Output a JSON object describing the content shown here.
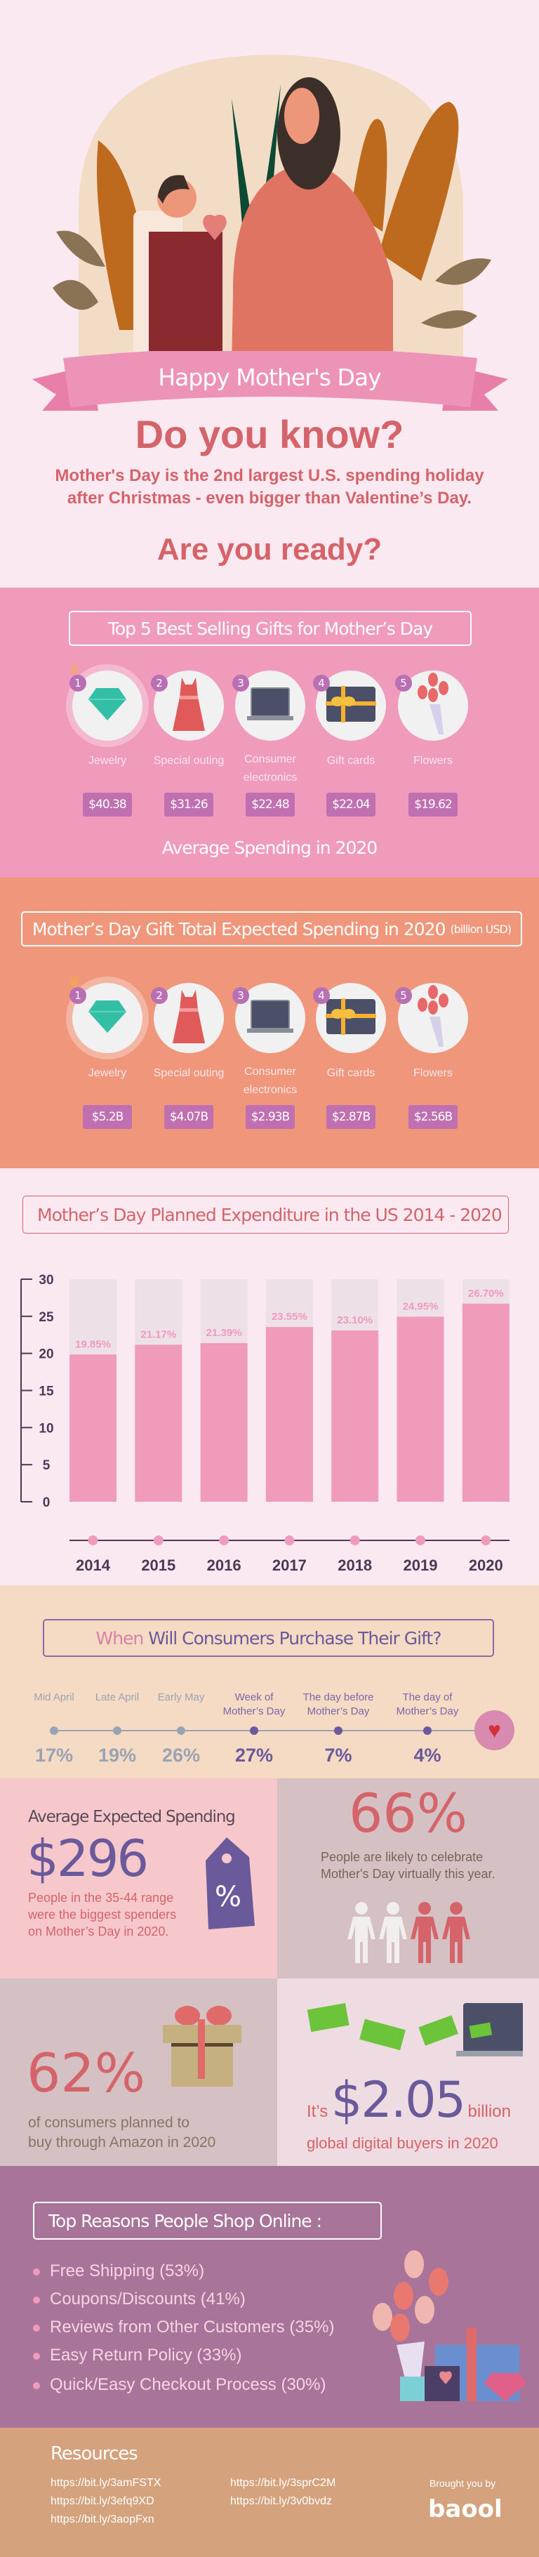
{
  "hero": {
    "ribbon": "Happy Mother's Day",
    "headline": "Do you know?",
    "fact_line1": "Mother's Day is the 2nd largest U.S. spending holiday",
    "fact_line2": "after Christmas - even bigger than Valentine’s Day.",
    "cta": "Are you ready?"
  },
  "top_gifts": {
    "title": "Top 5 Best Selling Gifts for Mother’s Day",
    "items": [
      {
        "rank": "1",
        "label": "Jewelry",
        "value": "$40.38",
        "icon": "diamond-icon"
      },
      {
        "rank": "2",
        "label": "Special outing",
        "value": "$31.26",
        "icon": "dress-icon"
      },
      {
        "rank": "3",
        "label": "Consumer electronics",
        "value": "$22.48",
        "icon": "laptop-icon"
      },
      {
        "rank": "4",
        "label": "Gift cards",
        "value": "$22.04",
        "icon": "gift-card-icon"
      },
      {
        "rank": "5",
        "label": "Flowers",
        "value": "$19.62",
        "icon": "flowers-icon"
      }
    ],
    "footer": "Average Spending in 2020"
  },
  "total_spending": {
    "title": "Mother’s Day Gift Total Expected Spending in 2020",
    "unit": "(billion USD)",
    "items": [
      {
        "rank": "1",
        "label": "Jewelry",
        "value": "$5.2B"
      },
      {
        "rank": "2",
        "label": "Special outing",
        "value": "$4.07B"
      },
      {
        "rank": "3",
        "label": "Consumer electronics",
        "value": "$2.93B"
      },
      {
        "rank": "4",
        "label": "Gift cards",
        "value": "$2.87B"
      },
      {
        "rank": "5",
        "label": "Flowers",
        "value": "$2.56B"
      }
    ]
  },
  "chart_data": {
    "type": "bar",
    "title": "Mother’s Day Planned Expenditure in the US 2014 - 2020",
    "categories": [
      "2014",
      "2015",
      "2016",
      "2017",
      "2018",
      "2019",
      "2020"
    ],
    "values": [
      19.85,
      21.17,
      21.39,
      23.55,
      23.1,
      24.95,
      26.7
    ],
    "data_labels": [
      "19.85%",
      "21.17%",
      "21.39%",
      "23.55%",
      "23.10%",
      "24.95%",
      "26.70%"
    ],
    "yticks": [
      "0",
      "5",
      "10",
      "15",
      "20",
      "25",
      "30"
    ],
    "ylim": [
      0,
      30
    ],
    "grid": false,
    "colors": {
      "bar": "#f09abc",
      "track": "#ede0e8"
    }
  },
  "purchase_timing": {
    "title_highlight": "When",
    "title_rest": " Will Consumers Purchase Their Gift?",
    "points": [
      {
        "label1": "",
        "label2": "Mid April",
        "value": "17%",
        "accent": false
      },
      {
        "label1": "",
        "label2": "Late April",
        "value": "19%",
        "accent": false
      },
      {
        "label1": "",
        "label2": "Early May",
        "value": "26%",
        "accent": false
      },
      {
        "label1": "Week of",
        "label2": "Mother’s Day",
        "value": "27%",
        "accent": true
      },
      {
        "label1": "The day before",
        "label2": "Mother’s Day",
        "value": "7%",
        "accent": true
      },
      {
        "label1": "The day of",
        "label2": "Mother’s Day",
        "value": "4%",
        "accent": true
      }
    ]
  },
  "stats": {
    "avg_title": "Average Expected Spending",
    "avg_value": "$296",
    "avg_note": [
      "People in the 35-44 range",
      "were the biggest spenders",
      "on Mother’s Day in 2020."
    ],
    "virtual_value": "66%",
    "virtual_note": [
      "People are likely to celebrate",
      "Mother's Day virtually this year."
    ],
    "amazon_value": "62%",
    "amazon_note": [
      "of consumers planned to",
      "buy through Amazon in 2020"
    ],
    "digital_prefix": "It’s",
    "digital_value": "$2.05",
    "digital_suffix": "billion",
    "digital_note": "global digital buyers in 2020"
  },
  "reasons": {
    "title": "Top Reasons People Shop Online :",
    "items": [
      "Free Shipping (53%)",
      "Coupons/Discounts (41%)",
      "Reviews from Other Customers (35%)",
      "Easy Return Policy (33%)",
      "Quick/Easy Checkout Process (30%)"
    ]
  },
  "resources": {
    "title": "Resources",
    "links": [
      "https://bit.ly/3amFSTX",
      "https://bit.ly/3efq9XD",
      "https://bit.ly/3aopFxn",
      "https://bit.ly/3sprC2M",
      "https://bit.ly/3v0bvdz"
    ],
    "credit": "Brought you by",
    "logo": "baool"
  }
}
